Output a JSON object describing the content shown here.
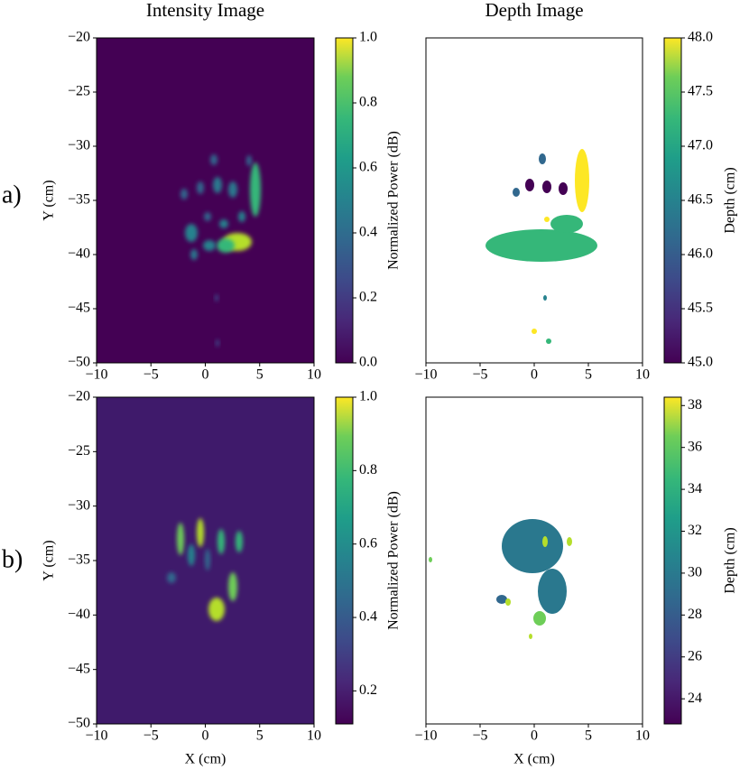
{
  "row_labels": [
    "a)",
    "b)"
  ],
  "chart_data": [
    {
      "type": "heatmap",
      "title": "Intensity Image",
      "ylabel": "Y (cm)",
      "xlim": [
        -10,
        10
      ],
      "xticks": [
        {
          "value": -10,
          "label": "−10"
        },
        {
          "value": -5,
          "label": "−5"
        },
        0,
        5,
        10
      ],
      "ylim": [
        -50,
        -20
      ],
      "yticks": [
        {
          "value": -20,
          "label": "−20"
        },
        {
          "value": -25,
          "label": "−25"
        },
        {
          "value": -30,
          "label": "−30"
        },
        {
          "value": -35,
          "label": "−35"
        },
        {
          "value": -40,
          "label": "−40"
        },
        {
          "value": -45,
          "label": "−45"
        },
        {
          "value": -50,
          "label": "−50"
        }
      ],
      "background": "#440154",
      "colorbar": {
        "label": "Normalized Power (dB)",
        "colormap": "viridis",
        "lim": [
          0,
          1
        ],
        "ticks": [
          {
            "value": 0,
            "label": "0.0"
          },
          0.2,
          0.4,
          0.6,
          0.8,
          {
            "value": 1,
            "label": "1.0"
          }
        ]
      }
    },
    {
      "type": "heatmap",
      "title": "Depth Image",
      "xlim": [
        -10,
        10
      ],
      "xticks": [
        {
          "value": -10,
          "label": "−10"
        },
        {
          "value": -5,
          "label": "−5"
        },
        0,
        5,
        10
      ],
      "ylim": [
        -50,
        -20
      ],
      "background": "#ffffff",
      "colorbar": {
        "label": "Depth (cm)",
        "colormap": "viridis",
        "lim": [
          45,
          48
        ],
        "ticks": [
          {
            "value": 45,
            "label": "45.0"
          },
          45.5,
          {
            "value": 46,
            "label": "46.0"
          },
          46.5,
          {
            "value": 47,
            "label": "47.0"
          },
          47.5,
          {
            "value": 48,
            "label": "48.0"
          }
        ]
      }
    },
    {
      "type": "heatmap",
      "xlabel": "X (cm)",
      "ylabel": "Y (cm)",
      "xlim": [
        -10,
        10
      ],
      "xticks": [
        {
          "value": -10,
          "label": "−10"
        },
        {
          "value": -5,
          "label": "−5"
        },
        0,
        5,
        10
      ],
      "ylim": [
        -50,
        -20
      ],
      "yticks": [
        {
          "value": -20,
          "label": "−20"
        },
        {
          "value": -25,
          "label": "−25"
        },
        {
          "value": -30,
          "label": "−30"
        },
        {
          "value": -35,
          "label": "−35"
        },
        {
          "value": -40,
          "label": "−40"
        },
        {
          "value": -45,
          "label": "−45"
        },
        {
          "value": -50,
          "label": "−50"
        }
      ],
      "background": "#3f1a6b",
      "colorbar": {
        "label": "Normalized Power (dB)",
        "colormap": "viridis",
        "lim": [
          0.11,
          1
        ],
        "ticks": [
          0.2,
          0.4,
          0.6,
          0.8,
          {
            "value": 1,
            "label": "1.0"
          }
        ]
      }
    },
    {
      "type": "heatmap",
      "xlabel": "X (cm)",
      "xlim": [
        -10,
        10
      ],
      "xticks": [
        {
          "value": -10,
          "label": "−10"
        },
        {
          "value": -5,
          "label": "−5"
        },
        0,
        5,
        10
      ],
      "ylim": [
        -50,
        -20
      ],
      "background": "#ffffff",
      "colorbar": {
        "label": "Depth (cm)",
        "colormap": "viridis",
        "lim": [
          22.8,
          38.4
        ],
        "ticks": [
          24,
          26,
          28,
          30,
          32,
          34,
          36,
          38
        ]
      }
    }
  ]
}
